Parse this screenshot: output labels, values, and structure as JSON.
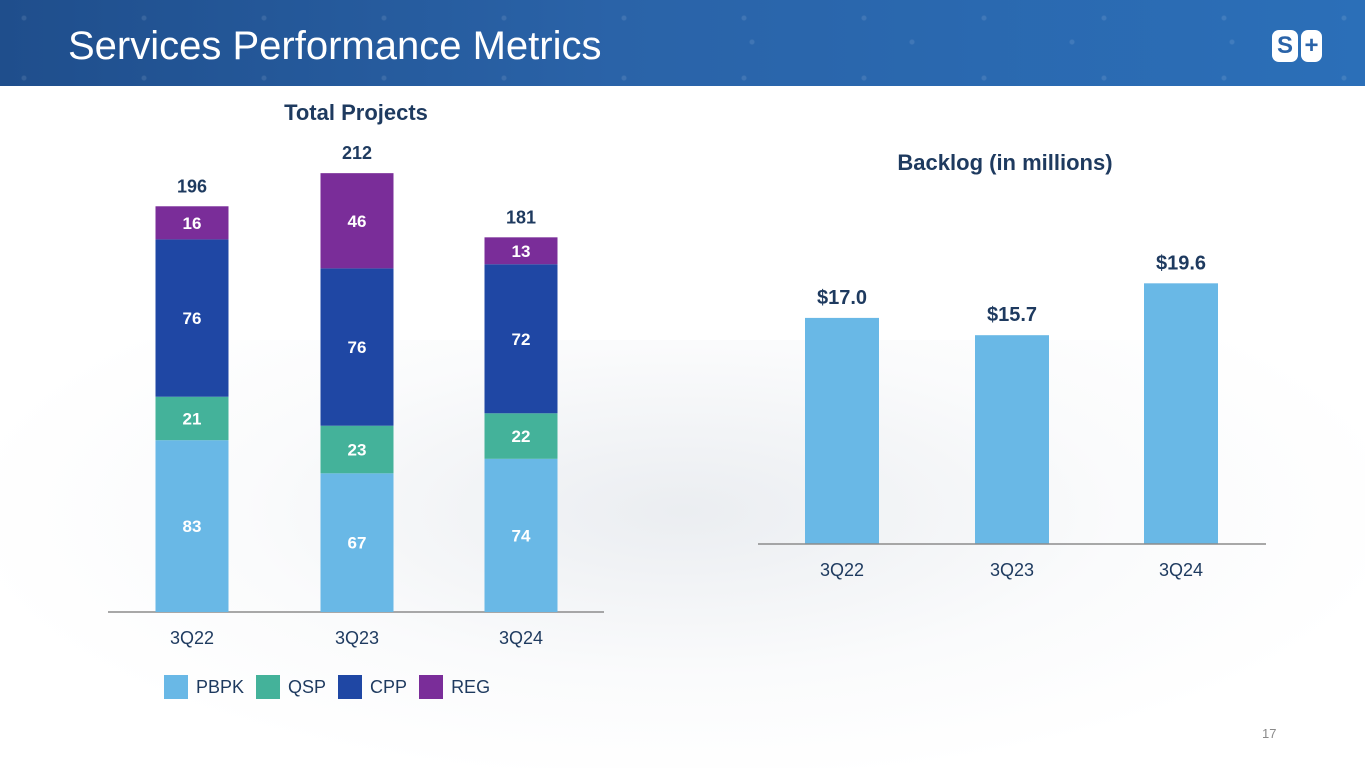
{
  "header": {
    "title": "Services Performance Metrics",
    "logo": {
      "left": "S",
      "right": "+"
    }
  },
  "colors": {
    "PBPK": "#69b8e6",
    "QSP": "#44b29a",
    "CPP": "#1f47a4",
    "REG": "#7a2d99",
    "backlog": "#69b8e6",
    "label_dark": "#1e3a5f"
  },
  "chart_data": [
    {
      "type": "bar",
      "stacked": true,
      "title": "Total Projects",
      "categories": [
        "3Q22",
        "3Q23",
        "3Q24"
      ],
      "series": [
        {
          "name": "PBPK",
          "values": [
            83,
            67,
            74
          ]
        },
        {
          "name": "QSP",
          "values": [
            21,
            23,
            22
          ]
        },
        {
          "name": "CPP",
          "values": [
            76,
            76,
            72
          ]
        },
        {
          "name": "REG",
          "values": [
            16,
            46,
            13
          ]
        }
      ],
      "totals": [
        196,
        212,
        181
      ],
      "legend": "bottom"
    },
    {
      "type": "bar",
      "title": "Backlog (in millions)",
      "categories": [
        "3Q22",
        "3Q23",
        "3Q24"
      ],
      "values": [
        17.0,
        15.7,
        19.6
      ],
      "value_labels": [
        "$17.0",
        "$15.7",
        "$19.6"
      ],
      "ylim": [
        0,
        20
      ]
    }
  ],
  "footer": {
    "page_number": "17"
  }
}
